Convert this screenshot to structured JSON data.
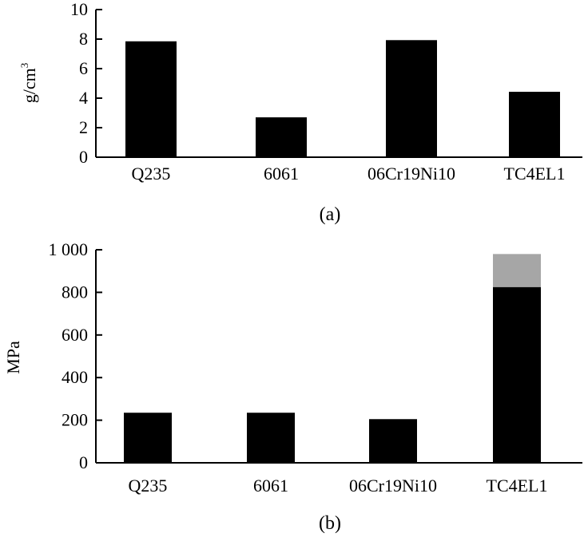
{
  "chart_data": [
    {
      "type": "bar",
      "categories": [
        "Q235",
        "6061",
        "06Cr19Ni10",
        "TC4EL1"
      ],
      "values": [
        7.85,
        2.7,
        7.93,
        4.43
      ],
      "ylabel_main": "g/cm",
      "ylabel_sup": "3",
      "ylim": [
        0,
        10
      ],
      "yticks": [
        "0",
        "2",
        "4",
        "6",
        "8",
        "10"
      ],
      "caption": "(a)",
      "grid": false,
      "bar_color": "#000000"
    },
    {
      "type": "bar",
      "categories": [
        "Q235",
        "6061",
        "06Cr19Ni10",
        "TC4EL1"
      ],
      "values": [
        235,
        235,
        205,
        825
      ],
      "stack_values": [
        0,
        0,
        0,
        155
      ],
      "ylabel": "MPa",
      "ylim": [
        0,
        1000
      ],
      "yticks": [
        "0",
        "200",
        "400",
        "600",
        "800",
        "1 000"
      ],
      "caption": "(b)",
      "grid": false,
      "bar_color": "#000000",
      "stack_color": "#a6a6a6"
    }
  ]
}
